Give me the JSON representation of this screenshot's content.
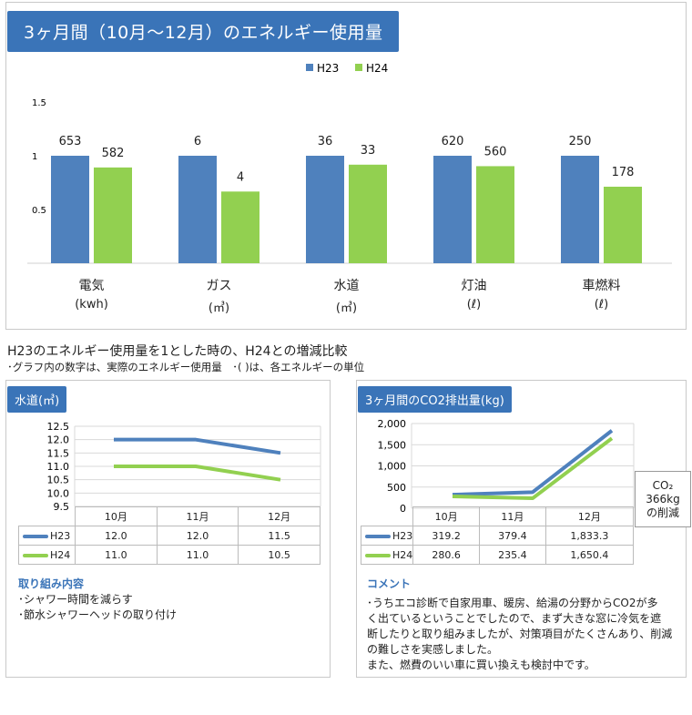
{
  "title": "3ヶ月間（10月〜12月）のエネルギー使用量",
  "colors": {
    "h23": "#4f81bd",
    "h24": "#92d050",
    "banner": "#3a74b8"
  },
  "chart_data": [
    {
      "type": "bar",
      "legend": [
        "H23",
        "H24"
      ],
      "categories": [
        {
          "name": "電気",
          "unit": "(kwh)"
        },
        {
          "name": "ガス",
          "unit": "(㎥)"
        },
        {
          "name": "水道",
          "unit": "(㎥)"
        },
        {
          "name": "灯油",
          "unit": "(ℓ)"
        },
        {
          "name": "車燃料",
          "unit": "(ℓ)"
        }
      ],
      "series": [
        {
          "name": "H23",
          "values": [
            1,
            1,
            1,
            1,
            1
          ],
          "labels": [
            "653",
            "6",
            "36",
            "620",
            "250"
          ]
        },
        {
          "name": "H24",
          "values": [
            0.891,
            0.667,
            0.917,
            0.903,
            0.712
          ],
          "labels": [
            "582",
            "4",
            "33",
            "560",
            "178"
          ]
        }
      ],
      "y_ticks": [
        "1.5",
        "1",
        "0.5"
      ],
      "ylim": [
        0,
        1.5
      ]
    },
    {
      "type": "line",
      "title": "水道(㎥)",
      "categories": [
        "10月",
        "11月",
        "12月"
      ],
      "series": [
        {
          "name": "H23",
          "values": [
            12.0,
            12.0,
            11.5
          ],
          "display": [
            "12.0",
            "12.0",
            "11.5"
          ]
        },
        {
          "name": "H24",
          "values": [
            11.0,
            11.0,
            10.5
          ],
          "display": [
            "11.0",
            "11.0",
            "10.5"
          ]
        }
      ],
      "y_ticks": [
        "12.5",
        "12.0",
        "11.5",
        "11.0",
        "10.5",
        "10.0",
        "9.5"
      ],
      "ylim": [
        9.5,
        12.5
      ]
    },
    {
      "type": "line",
      "title": "3ヶ月間のCO2排出量(kg)",
      "categories": [
        "10月",
        "11月",
        "12月"
      ],
      "series": [
        {
          "name": "H23",
          "values": [
            319.2,
            379.4,
            1833.3
          ],
          "display": [
            "319.2",
            "379.4",
            "1,833.3"
          ]
        },
        {
          "name": "H24",
          "values": [
            280.6,
            235.4,
            1650.4
          ],
          "display": [
            "280.6",
            "235.4",
            "1,650.4"
          ]
        }
      ],
      "y_ticks": [
        "2,000",
        "1,500",
        "1,000",
        "500",
        "0"
      ],
      "ylim": [
        0,
        2000
      ]
    }
  ],
  "subtitle": "H23のエネルギー使用量を1とした時の、H24との増減比較",
  "note": "･グラフ内の数字は、実際のエネルギー使用量　･(  )は、各エネルギーの単位",
  "co2_callout": {
    "line1": "CO₂",
    "line2": "366kg",
    "line3": "の削減"
  },
  "efforts": {
    "title": "取り組み内容",
    "items": [
      "･シャワー時間を減らす",
      "･節水シャワーヘッドの取り付け"
    ]
  },
  "comment": {
    "title": "コメント",
    "lines": [
      "･うちエコ診断で自家用車、暖房、給湯の分野からCO2が多",
      "く出ているということでしたので、まず大きな窓に冷気を遮",
      "断したりと取り組みましたが、対策項目がたくさんあり、削減",
      "の難しさを実感しました。",
      "また、燃費のいい車に買い換えも検討中です。"
    ]
  }
}
